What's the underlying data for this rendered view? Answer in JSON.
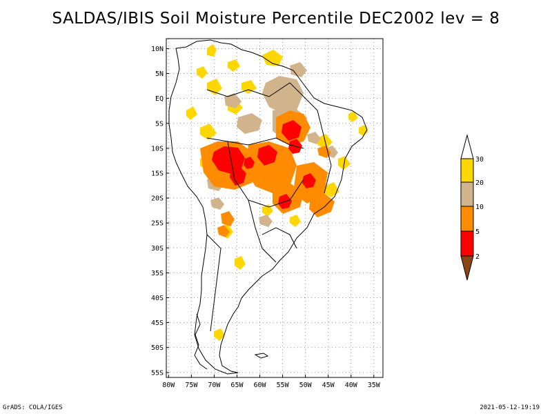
{
  "title": "SALDAS/IBIS Soil Moisture Percentile DEC2002 lev = 8",
  "footer": {
    "left": "GrADS: COLA/IGES",
    "right": "2021-05-12-19:19"
  },
  "map": {
    "lat_ticks": [
      "10N",
      "5N",
      "EQ",
      "5S",
      "10S",
      "15S",
      "20S",
      "25S",
      "30S",
      "35S",
      "40S",
      "45S",
      "50S",
      "55S"
    ],
    "lon_ticks": [
      "80W",
      "75W",
      "70W",
      "65W",
      "60W",
      "55W",
      "50W",
      "45W",
      "40W",
      "35W"
    ],
    "lon_range": [
      -80.5,
      -33
    ],
    "lat_range": [
      -56,
      12
    ],
    "grid": true
  },
  "colorbar": {
    "labels": [
      "30",
      "20",
      "10",
      "5",
      "2"
    ],
    "colors": {
      "above_30": "#ffffff",
      "20_30": "#ffd700",
      "10_20": "#d2b48c",
      "5_10": "#ff8c00",
      "2_5": "#ff0000",
      "below_2": "#8b4513"
    }
  },
  "palette": {
    "yellow": "#ffd700",
    "tan": "#d2b48c",
    "orange": "#ff8c00",
    "red": "#ff0000",
    "brown": "#8b4513"
  }
}
